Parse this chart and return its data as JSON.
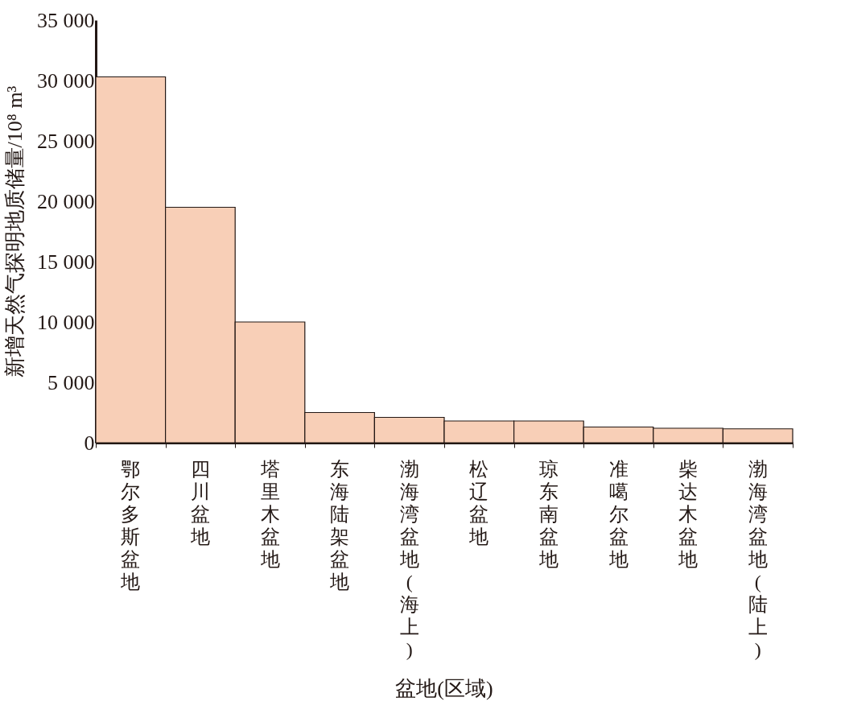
{
  "chart_data": {
    "type": "bar",
    "xlabel": "盆地(区域)",
    "ylabel": "新增天然气探明地质储量/10⁸ m³",
    "categories": [
      "鄂尔多斯盆地",
      "四川盆地",
      "塔里木盆地",
      "东海陆架盆地",
      "渤海湾盆地(海上)",
      "松辽盆地",
      "琼东南盆地",
      "准噶尔盆地",
      "柴达木盆地",
      "渤海湾盆地(陆上)"
    ],
    "values": [
      30300,
      19500,
      10000,
      2500,
      2100,
      1800,
      1800,
      1300,
      1200,
      1150
    ],
    "color": "#f8cfb7",
    "ylim": [
      0,
      35000
    ],
    "yticks": [
      0,
      5000,
      10000,
      15000,
      20000,
      25000,
      30000,
      35000
    ],
    "grid": false
  }
}
